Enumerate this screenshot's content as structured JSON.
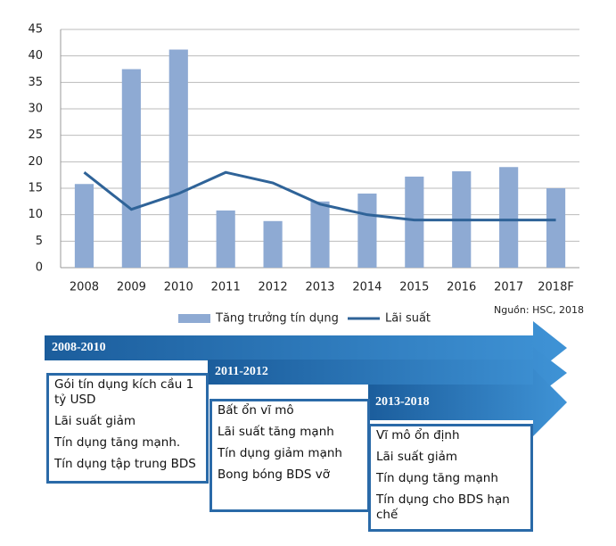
{
  "chart_data": {
    "type": "bar",
    "categories": [
      "2008",
      "2009",
      "2010",
      "2011",
      "2012",
      "2013",
      "2014",
      "2015",
      "2016",
      "2017",
      "2018F"
    ],
    "series": [
      {
        "name": "Tăng trưởng tín dụng",
        "type": "bar",
        "color": "#8eaad3",
        "values": [
          15.8,
          37.5,
          41.2,
          10.8,
          8.8,
          12.5,
          14,
          17.2,
          18.2,
          19,
          15
        ]
      },
      {
        "name": "Lãi suất",
        "type": "line",
        "color": "#2f6398",
        "values": [
          18,
          11,
          14,
          18,
          16,
          12,
          10,
          9,
          9,
          9,
          9
        ]
      }
    ],
    "ylim": [
      0,
      45
    ],
    "yticks": [
      0,
      5,
      10,
      15,
      20,
      25,
      30,
      35,
      40,
      45
    ],
    "grid": true,
    "source": "Nguồn: HSC, 2018"
  },
  "timeline": {
    "stages": [
      {
        "period": "2008-2010",
        "items": [
          "Gói tín dụng kích cầu 1 tỷ USD",
          "Lãi suất giảm",
          "Tín dụng tăng mạnh.",
          "Tín dụng tập trung BDS"
        ]
      },
      {
        "period": "2011-2012",
        "items": [
          "Bất ổn vĩ mô",
          "Lãi suất tăng mạnh",
          "Tín dụng giảm mạnh",
          "Bong bóng BDS vỡ"
        ]
      },
      {
        "period": "2013-2018",
        "items": [
          "Vĩ mô ổn định",
          "Lãi suất giảm",
          "Tín dụng tăng mạnh",
          "Tín dụng cho BDS hạn chế"
        ]
      }
    ]
  }
}
